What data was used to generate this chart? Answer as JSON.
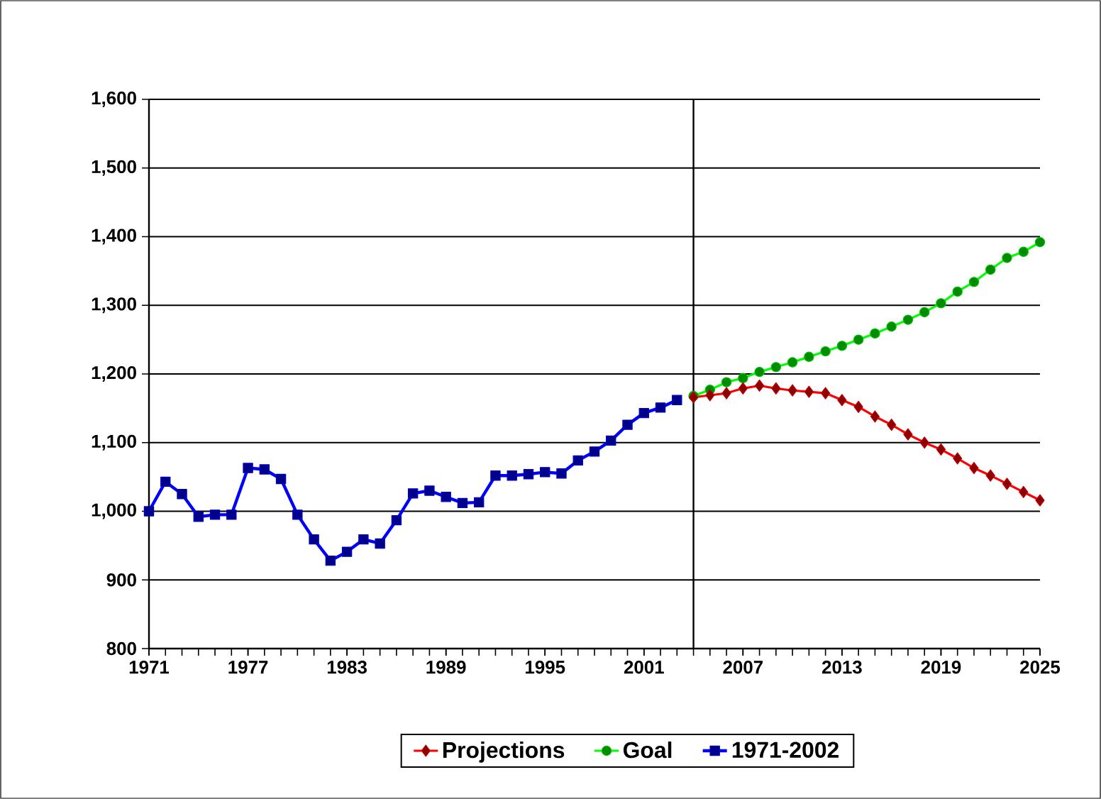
{
  "chart_data": {
    "type": "line",
    "x": [
      1971,
      1972,
      1973,
      1974,
      1975,
      1976,
      1977,
      1978,
      1979,
      1980,
      1981,
      1982,
      1983,
      1984,
      1985,
      1986,
      1987,
      1988,
      1989,
      1990,
      1991,
      1992,
      1993,
      1994,
      1995,
      1996,
      1997,
      1998,
      1999,
      2000,
      2001,
      2002,
      2003
    ],
    "series": [
      {
        "name": "Projections",
        "color": "#ff0000",
        "marker": "diamond",
        "x": [
          2004,
          2005,
          2006,
          2007,
          2008,
          2009,
          2010,
          2011,
          2012,
          2013,
          2014,
          2015,
          2016,
          2017,
          2018,
          2019,
          2020,
          2021,
          2022,
          2023,
          2024,
          2025
        ],
        "values": [
          1166,
          1169,
          1172,
          1179,
          1183,
          1179,
          1176,
          1174,
          1172,
          1162,
          1152,
          1138,
          1126,
          1112,
          1100,
          1090,
          1077,
          1063,
          1052,
          1040,
          1028,
          1016
        ]
      },
      {
        "name": "Goal",
        "color": "#00ff00",
        "marker": "circle",
        "x": [
          2004,
          2005,
          2006,
          2007,
          2008,
          2009,
          2010,
          2011,
          2012,
          2013,
          2014,
          2015,
          2016,
          2017,
          2018,
          2019,
          2020,
          2021,
          2022,
          2023,
          2024,
          2025
        ],
        "values": [
          1168,
          1177,
          1188,
          1194,
          1203,
          1210,
          1217,
          1225,
          1233,
          1241,
          1250,
          1259,
          1269,
          1279,
          1290,
          1303,
          1320,
          1334,
          1352,
          1369,
          1378,
          1392
        ]
      },
      {
        "name": "1971-2002",
        "color": "#0000ff",
        "marker": "square",
        "values": [
          1000,
          1043,
          1025,
          992,
          995,
          995,
          1063,
          1061,
          1047,
          995,
          959,
          928,
          941,
          959,
          953,
          987,
          1026,
          1030,
          1021,
          1012,
          1013,
          1052,
          1052,
          1054,
          1057,
          1055,
          1074,
          1087,
          1103,
          1126,
          1143,
          1151,
          1162
        ]
      }
    ],
    "xlim": [
      1971,
      2025
    ],
    "xticks": [
      1971,
      1977,
      1983,
      1989,
      1995,
      2001,
      2007,
      2013,
      2019,
      2025
    ],
    "ylim": [
      800,
      1600
    ],
    "yticks": [
      {
        "value": 800,
        "label": "800"
      },
      {
        "value": 900,
        "label": "900"
      },
      {
        "value": 1000,
        "label": "1,000"
      },
      {
        "value": 1100,
        "label": "1,100"
      },
      {
        "value": 1200,
        "label": "1,200"
      },
      {
        "value": 1300,
        "label": "1,300"
      },
      {
        "value": 1400,
        "label": "1,400"
      },
      {
        "value": 1500,
        "label": "1,500"
      },
      {
        "value": 1600,
        "label": "1,600"
      }
    ],
    "ref_lines": [
      {
        "axis": "x",
        "value": 2004,
        "color": "#000000"
      }
    ],
    "grid": "y",
    "legend": "bottom",
    "line_style": "solid"
  }
}
